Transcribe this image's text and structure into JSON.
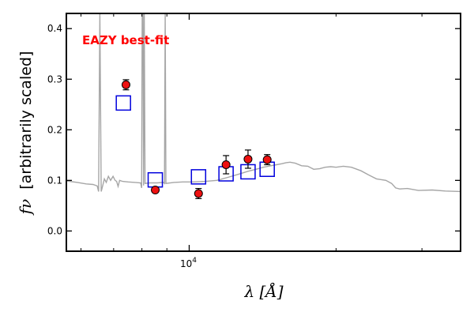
{
  "chart_data": {
    "type": "scatter",
    "title": "",
    "xlabel": "λ [Å]",
    "ylabel_symbol": "fν",
    "ylabel_text": "[arbitrarily scaled]",
    "annotation": "EAZY best-fit",
    "xscale": "log",
    "xlim": [
      5600,
      36000
    ],
    "ylim": [
      -0.04,
      0.43
    ],
    "yticks": [
      0.0,
      0.1,
      0.2,
      0.3,
      0.4
    ],
    "ytick_labels": [
      "0.0",
      "0.1",
      "0.2",
      "0.3",
      "0.4"
    ],
    "xticks": [
      10000
    ],
    "xtick_labels": [
      "10^4"
    ],
    "grid": false,
    "observed_photometry": {
      "color": "#ee1111",
      "points": [
        {
          "x": 7420,
          "y": 0.289,
          "yerr": 0.01
        },
        {
          "x": 8520,
          "y": 0.081,
          "yerr": 0.005
        },
        {
          "x": 10450,
          "y": 0.074,
          "yerr": 0.01
        },
        {
          "x": 11900,
          "y": 0.131,
          "yerr": 0.018
        },
        {
          "x": 13200,
          "y": 0.142,
          "yerr": 0.018
        },
        {
          "x": 14450,
          "y": 0.141,
          "yerr": 0.01
        }
      ]
    },
    "model_photometry": {
      "color": "#0000dd",
      "points": [
        {
          "x": 7330,
          "y": 0.253
        },
        {
          "x": 8520,
          "y": 0.101
        },
        {
          "x": 10450,
          "y": 0.107
        },
        {
          "x": 11900,
          "y": 0.113
        },
        {
          "x": 13200,
          "y": 0.117
        },
        {
          "x": 14450,
          "y": 0.122
        }
      ]
    },
    "model_sed": {
      "color": "#a6a6a6",
      "points": [
        [
          5600,
          0.099
        ],
        [
          5900,
          0.096
        ],
        [
          6150,
          0.093
        ],
        [
          6350,
          0.092
        ],
        [
          6480,
          0.089
        ],
        [
          6520,
          0.078
        ],
        [
          6560,
          0.43
        ],
        [
          6600,
          0.078
        ],
        [
          6650,
          0.09
        ],
        [
          6700,
          0.103
        ],
        [
          6760,
          0.096
        ],
        [
          6830,
          0.108
        ],
        [
          6900,
          0.1
        ],
        [
          6980,
          0.108
        ],
        [
          7050,
          0.1
        ],
        [
          7100,
          0.098
        ],
        [
          7150,
          0.088
        ],
        [
          7200,
          0.1
        ],
        [
          7300,
          0.098
        ],
        [
          7500,
          0.097
        ],
        [
          7750,
          0.096
        ],
        [
          7950,
          0.095
        ],
        [
          7990,
          0.085
        ],
        [
          8010,
          0.43
        ],
        [
          8040,
          0.43
        ],
        [
          8060,
          0.09
        ],
        [
          8090,
          0.43
        ],
        [
          8120,
          0.094
        ],
        [
          8300,
          0.095
        ],
        [
          8600,
          0.095
        ],
        [
          8850,
          0.096
        ],
        [
          8900,
          0.094
        ],
        [
          8930,
          0.43
        ],
        [
          8960,
          0.094
        ],
        [
          9300,
          0.096
        ],
        [
          9700,
          0.097
        ],
        [
          10200,
          0.097
        ],
        [
          10800,
          0.098
        ],
        [
          11400,
          0.1
        ],
        [
          12000,
          0.106
        ],
        [
          12600,
          0.112
        ],
        [
          13200,
          0.118
        ],
        [
          13700,
          0.122
        ],
        [
          14200,
          0.126
        ],
        [
          14700,
          0.129
        ],
        [
          15100,
          0.131
        ],
        [
          15500,
          0.133
        ],
        [
          15800,
          0.135
        ],
        [
          16100,
          0.136
        ],
        [
          16500,
          0.134
        ],
        [
          17000,
          0.129
        ],
        [
          17500,
          0.128
        ],
        [
          18000,
          0.122
        ],
        [
          18500,
          0.123
        ],
        [
          19000,
          0.126
        ],
        [
          19500,
          0.127
        ],
        [
          20000,
          0.126
        ],
        [
          20700,
          0.128
        ],
        [
          21500,
          0.126
        ],
        [
          22500,
          0.119
        ],
        [
          23300,
          0.111
        ],
        [
          24200,
          0.103
        ],
        [
          25300,
          0.1
        ],
        [
          26000,
          0.094
        ],
        [
          26500,
          0.085
        ],
        [
          27000,
          0.083
        ],
        [
          28000,
          0.084
        ],
        [
          29500,
          0.08
        ],
        [
          31500,
          0.081
        ],
        [
          33500,
          0.079
        ],
        [
          36000,
          0.078
        ]
      ]
    }
  }
}
